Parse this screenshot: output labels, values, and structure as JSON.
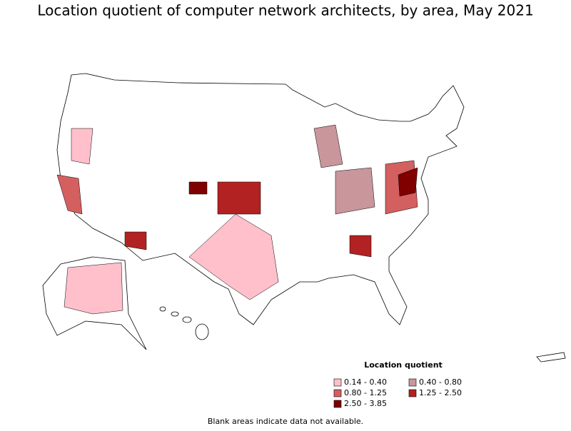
{
  "title": "Location quotient of computer network architects, by area, May 2021",
  "legend": {
    "title": "Location quotient",
    "items": [
      {
        "label": "0.14 - 0.40",
        "color": "#ffc0cb"
      },
      {
        "label": "0.40 - 0.80",
        "color": "#c9969c"
      },
      {
        "label": "0.80 - 1.25",
        "color": "#d45f5f"
      },
      {
        "label": "1.25 - 2.50",
        "color": "#b22222"
      },
      {
        "label": "2.50 - 3.85",
        "color": "#800000"
      }
    ]
  },
  "footnote": "Blank areas indicate data not available."
}
